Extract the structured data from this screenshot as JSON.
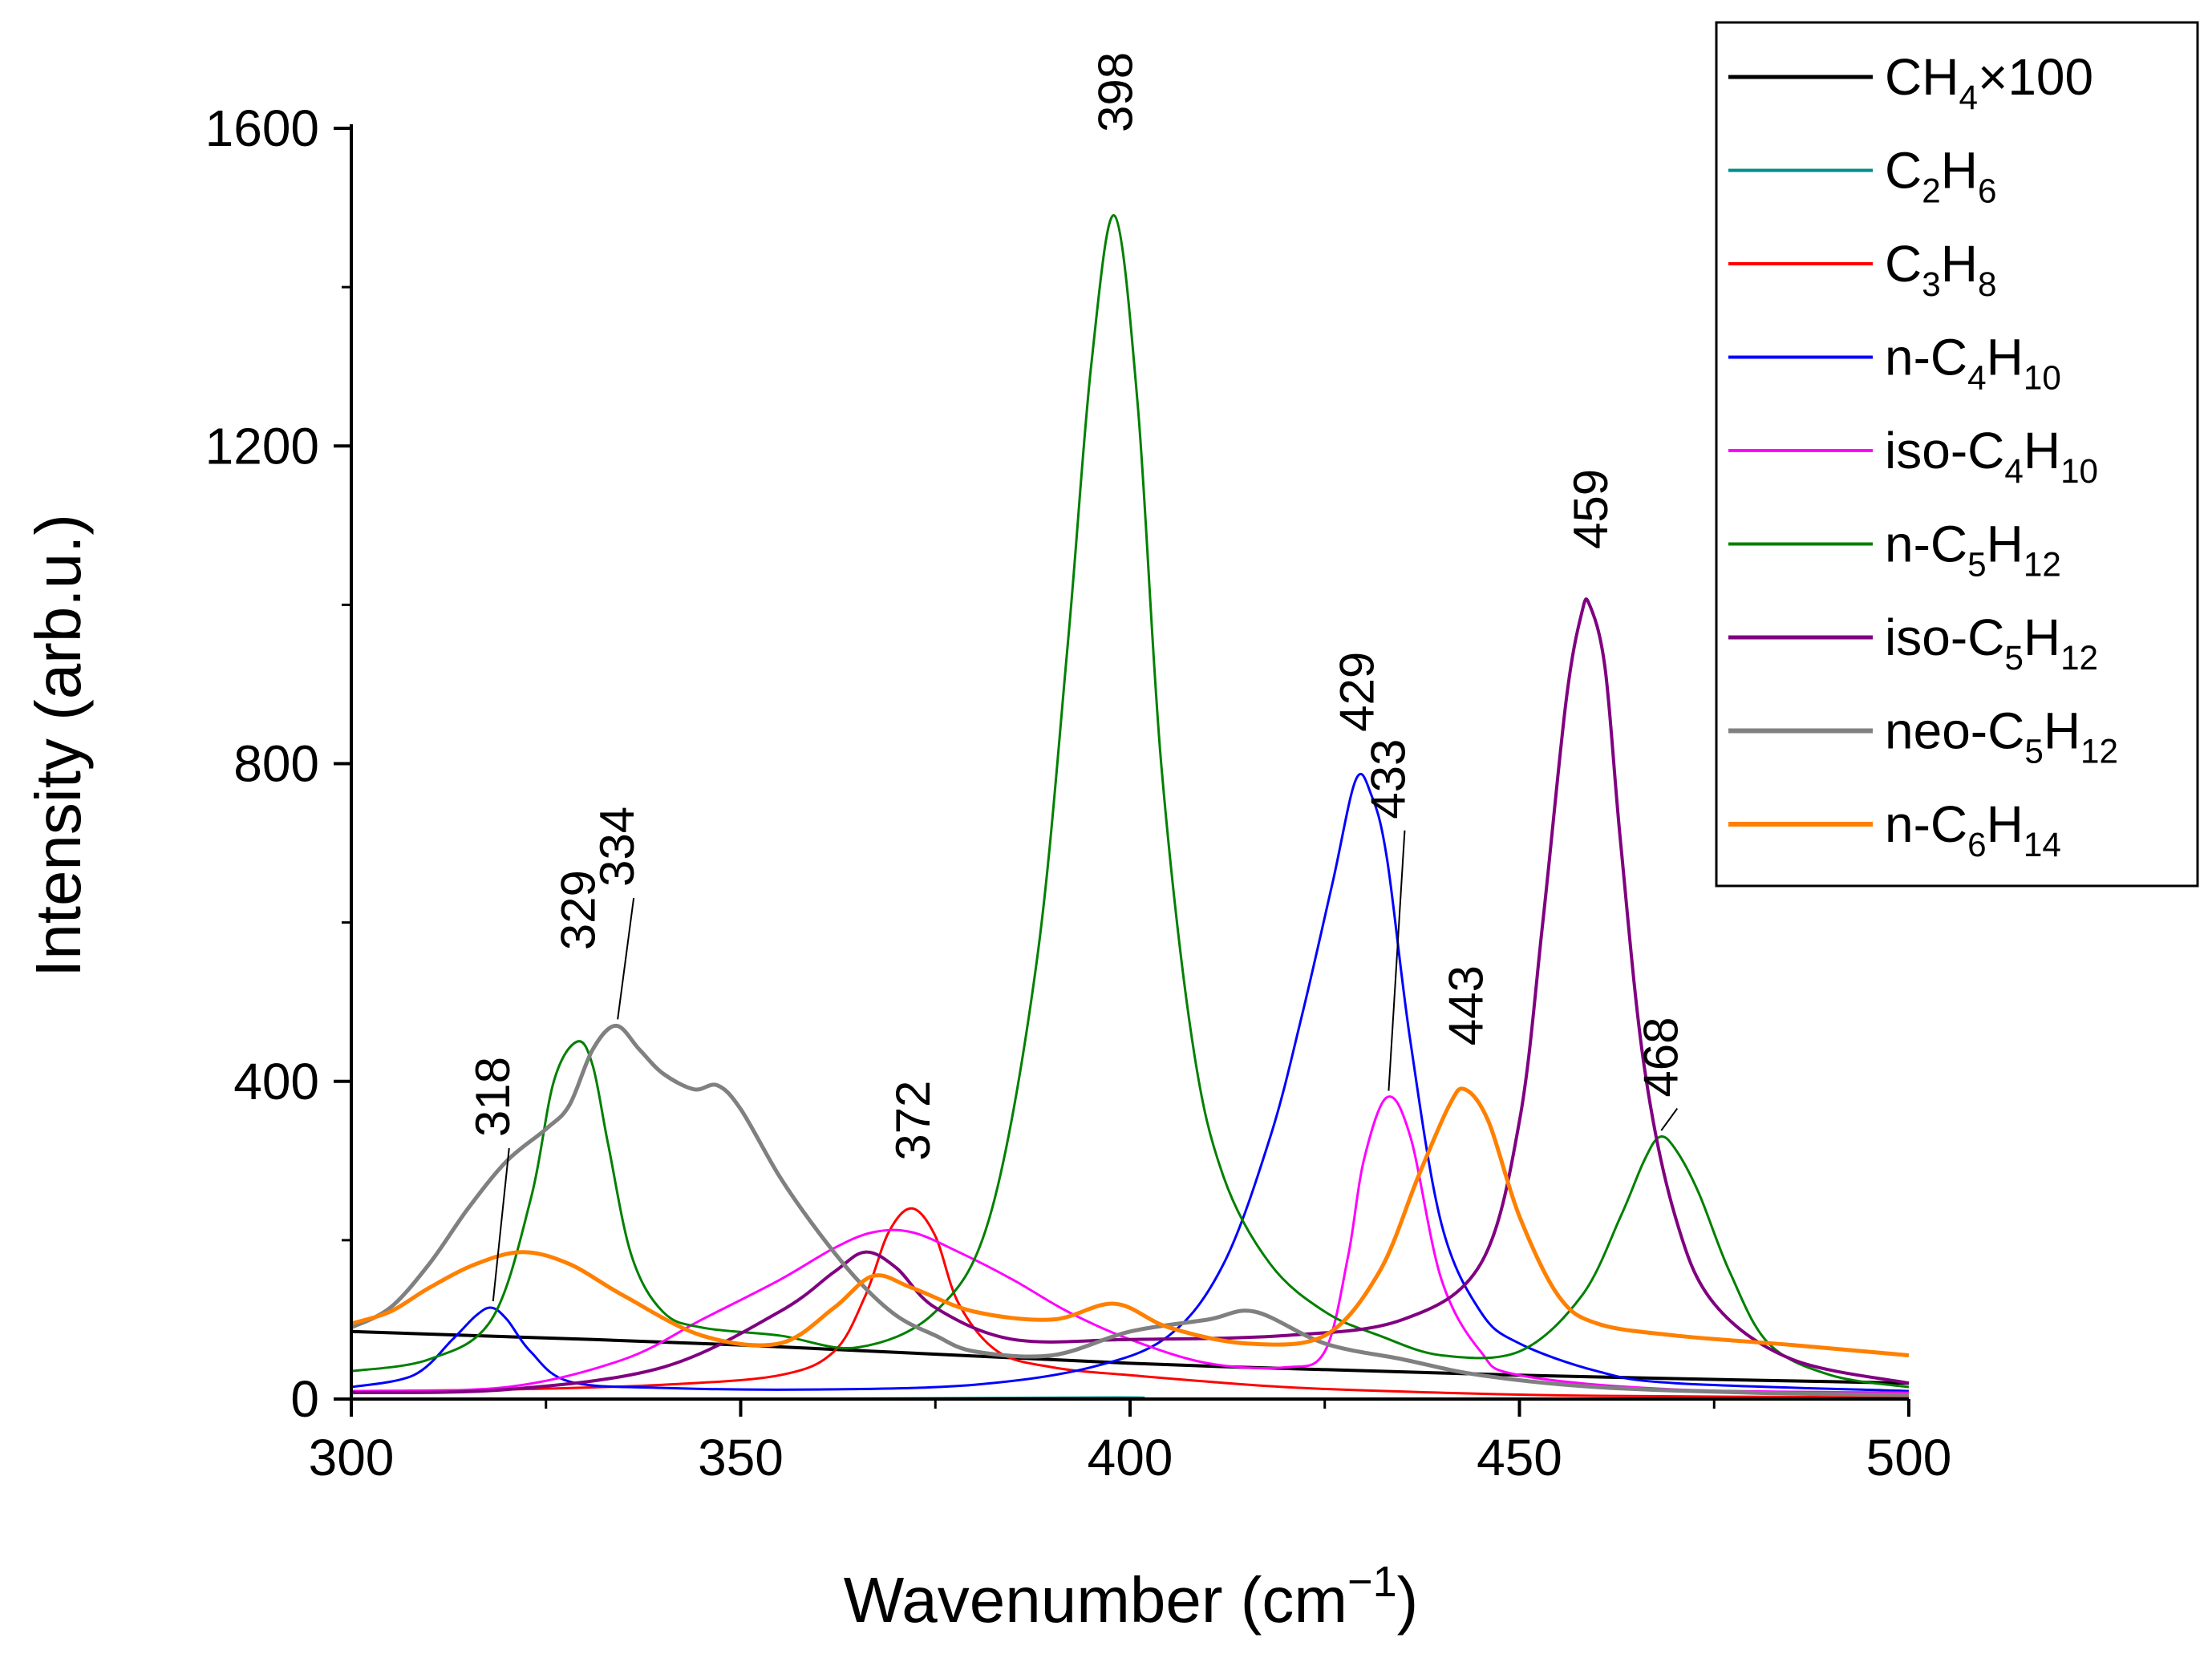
{
  "chart_data": {
    "type": "line",
    "xlabel": "Wavenumber (cm−1)",
    "ylabel": "Intensity (arb.u.)",
    "xlim": [
      300,
      500
    ],
    "ylim": [
      0,
      1600
    ],
    "xticks": [
      300,
      350,
      400,
      450,
      500
    ],
    "yticks": [
      0,
      400,
      800,
      1200,
      1600
    ],
    "legend_position": "top-right",
    "series": [
      {
        "name": "CH4×100",
        "label_parts": [
          [
            "CH",
            ""
          ],
          [
            "4",
            "sub"
          ],
          [
            "×100",
            ""
          ]
        ],
        "color": "#000000",
        "width": 4,
        "x": [
          300,
          350,
          400,
          450,
          500
        ],
        "y": [
          85,
          68,
          45,
          30,
          20
        ]
      },
      {
        "name": "C2H6",
        "label_parts": [
          [
            "C",
            ""
          ],
          [
            "2",
            "sub"
          ],
          [
            "H",
            ""
          ],
          [
            "6",
            "sub"
          ]
        ],
        "color": "#008b8b",
        "width": 3,
        "x": [
          300,
          350,
          398,
          410,
          500
        ],
        "y": [
          0,
          0,
          2,
          0,
          0
        ]
      },
      {
        "name": "C3H8",
        "label_parts": [
          [
            "C",
            ""
          ],
          [
            "3",
            "sub"
          ],
          [
            "H",
            ""
          ],
          [
            "8",
            "sub"
          ]
        ],
        "color": "#ff0000",
        "width": 3,
        "x": [
          300,
          320,
          340,
          355,
          362,
          366,
          369,
          372,
          375,
          378,
          383,
          390,
          400,
          420,
          440,
          460,
          500
        ],
        "y": [
          10,
          12,
          18,
          30,
          60,
          130,
          210,
          240,
          205,
          120,
          60,
          40,
          30,
          15,
          8,
          4,
          2
        ]
      },
      {
        "name": "n-C4H10",
        "label_parts": [
          [
            "n-C",
            ""
          ],
          [
            "4",
            "sub"
          ],
          [
            "H",
            ""
          ],
          [
            "10",
            "sub"
          ]
        ],
        "color": "#0000ff",
        "width": 3,
        "x": [
          300,
          308,
          313,
          316,
          318,
          320,
          323,
          328,
          340,
          360,
          380,
          395,
          405,
          412,
          418,
          422,
          426,
          429,
          431,
          433,
          436,
          440,
          445,
          450,
          460,
          470,
          500
        ],
        "y": [
          15,
          30,
          75,
          105,
          115,
          100,
          60,
          22,
          14,
          12,
          18,
          40,
          80,
          170,
          330,
          480,
          650,
          780,
          760,
          680,
          450,
          220,
          110,
          70,
          35,
          20,
          10
        ]
      },
      {
        "name": "iso-C4H10",
        "label_parts": [
          [
            "iso-C",
            ""
          ],
          [
            "4",
            "sub"
          ],
          [
            "H",
            ""
          ],
          [
            "10",
            "sub"
          ]
        ],
        "color": "#ff00ff",
        "width": 3,
        "x": [
          300,
          320,
          335,
          345,
          355,
          362,
          367,
          372,
          378,
          385,
          392,
          400,
          410,
          420,
          425,
          428,
          430,
          433,
          436,
          440,
          445,
          450,
          470,
          500
        ],
        "y": [
          10,
          15,
          50,
          100,
          150,
          190,
          210,
          210,
          185,
          150,
          110,
          75,
          45,
          40,
          60,
          180,
          300,
          380,
          330,
          150,
          60,
          30,
          12,
          8
        ]
      },
      {
        "name": "n-C5H12",
        "label_parts": [
          [
            "n-C",
            ""
          ],
          [
            "5",
            "sub"
          ],
          [
            "H",
            ""
          ],
          [
            "12",
            "sub"
          ]
        ],
        "color": "#008000",
        "width": 3,
        "x": [
          300,
          310,
          318,
          323,
          326,
          329,
          331,
          333,
          336,
          340,
          345,
          355,
          365,
          375,
          382,
          388,
          392,
          395,
          398,
          401,
          404,
          408,
          412,
          418,
          425,
          432,
          440,
          450,
          458,
          463,
          466,
          468,
          470,
          473,
          477,
          482,
          490,
          500
        ],
        "y": [
          35,
          50,
          100,
          250,
          400,
          450,
          420,
          320,
          180,
          110,
          90,
          80,
          65,
          110,
          230,
          550,
          950,
          1300,
          1490,
          1250,
          800,
          450,
          280,
          170,
          110,
          80,
          55,
          60,
          130,
          230,
          300,
          330,
          315,
          260,
          160,
          70,
          30,
          15
        ]
      },
      {
        "name": "iso-C5H12",
        "label_parts": [
          [
            "iso-C",
            ""
          ],
          [
            "5",
            "sub"
          ],
          [
            "H",
            ""
          ],
          [
            "12",
            "sub"
          ]
        ],
        "color": "#800080",
        "width": 4,
        "x": [
          300,
          320,
          340,
          355,
          362,
          366,
          370,
          375,
          385,
          400,
          420,
          435,
          445,
          450,
          453,
          456,
          458,
          459,
          461,
          463,
          466,
          470,
          475,
          485,
          500
        ],
        "y": [
          8,
          12,
          40,
          110,
          160,
          185,
          165,
          115,
          75,
          75,
          80,
          100,
          170,
          350,
          600,
          880,
          990,
          1000,
          920,
          700,
          420,
          230,
          120,
          50,
          20
        ]
      },
      {
        "name": "neo-C5H12",
        "label_parts": [
          [
            "neo-C",
            ""
          ],
          [
            "5",
            "sub"
          ],
          [
            "H",
            ""
          ],
          [
            "12",
            "sub"
          ]
        ],
        "color": "#808080",
        "width": 5,
        "x": [
          300,
          305,
          310,
          315,
          320,
          325,
          328,
          331,
          334,
          337,
          340,
          344,
          347,
          350,
          355,
          360,
          365,
          370,
          375,
          380,
          390,
          400,
          410,
          416,
          425,
          435,
          445,
          460,
          480,
          500
        ],
        "y": [
          90,
          115,
          170,
          240,
          300,
          340,
          370,
          440,
          470,
          440,
          410,
          390,
          395,
          365,
          280,
          210,
          150,
          105,
          80,
          60,
          55,
          85,
          100,
          110,
          70,
          50,
          30,
          15,
          8,
          5
        ]
      },
      {
        "name": "n-C6H14",
        "label_parts": [
          [
            "n-C",
            ""
          ],
          [
            "6",
            "sub"
          ],
          [
            "H",
            ""
          ],
          [
            "14",
            "sub"
          ]
        ],
        "color": "#ff8000",
        "width": 5,
        "x": [
          300,
          305,
          310,
          316,
          322,
          328,
          335,
          345,
          355,
          362,
          367,
          372,
          380,
          390,
          398,
          405,
          415,
          425,
          432,
          437,
          441,
          443,
          446,
          450,
          455,
          460,
          470,
          485,
          500
        ],
        "y": [
          95,
          110,
          140,
          170,
          185,
          170,
          130,
          80,
          70,
          115,
          155,
          140,
          110,
          100,
          120,
          90,
          70,
          80,
          160,
          280,
          370,
          390,
          350,
          230,
          130,
          95,
          80,
          68,
          55
        ]
      }
    ],
    "annotations": [
      {
        "text": "318",
        "x": 318,
        "y": 115,
        "label_y": 330,
        "leader": true
      },
      {
        "text": "329",
        "x": 329,
        "y": 450,
        "label_y": 565,
        "leader": false
      },
      {
        "text": "334",
        "x": 334,
        "y": 470,
        "label_y": 645,
        "leader": true
      },
      {
        "text": "372",
        "x": 372,
        "y": 240,
        "label_y": 300,
        "leader": false
      },
      {
        "text": "398",
        "x": 398,
        "y": 1490,
        "label_y": 1595,
        "leader": false
      },
      {
        "text": "429",
        "x": 429,
        "y": 780,
        "label_y": 840,
        "leader": false
      },
      {
        "text": "433",
        "x": 433,
        "y": 380,
        "label_y": 730,
        "leader": true
      },
      {
        "text": "443",
        "x": 443,
        "y": 390,
        "label_y": 445,
        "leader": false
      },
      {
        "text": "459",
        "x": 459,
        "y": 1000,
        "label_y": 1070,
        "leader": false
      },
      {
        "text": "468",
        "x": 468,
        "y": 330,
        "label_y": 380,
        "leader": true
      }
    ]
  }
}
